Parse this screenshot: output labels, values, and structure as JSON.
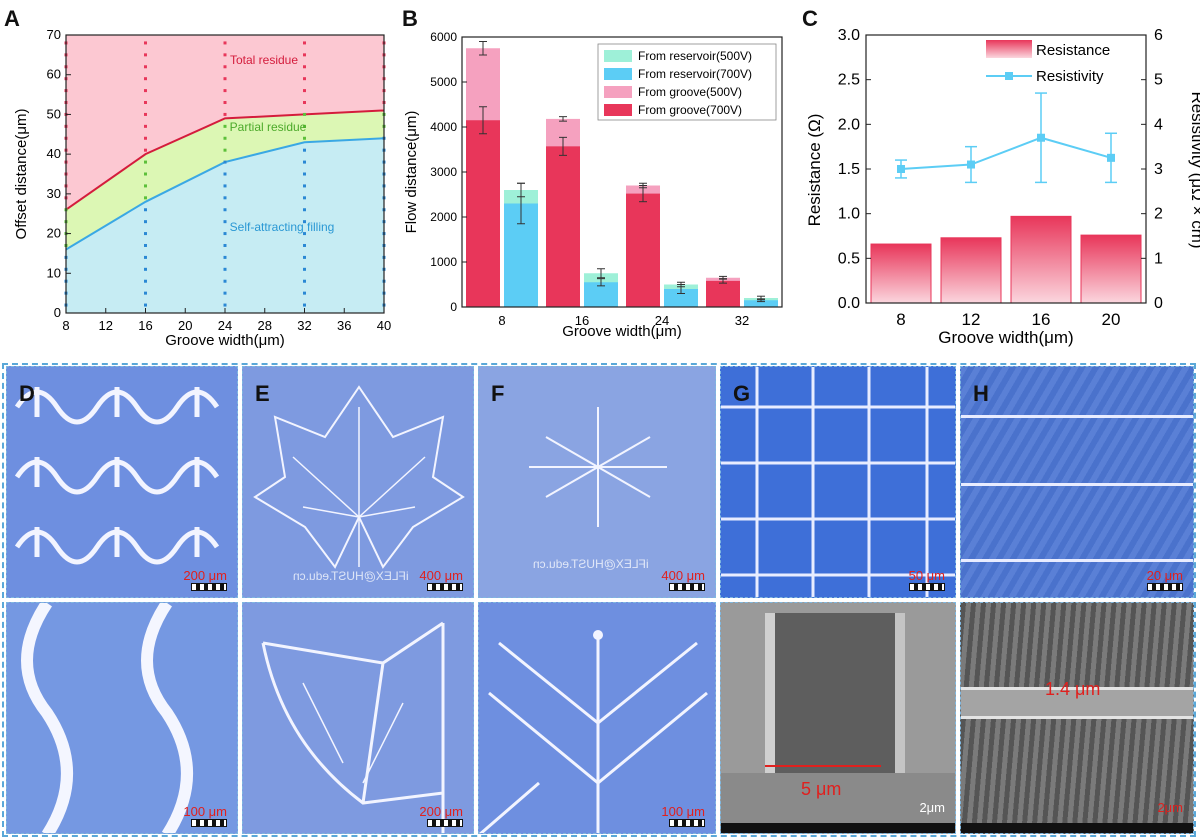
{
  "colors": {
    "red": "#e8365a",
    "pink": "#f5a1bf",
    "cyan": "#5ccdf5",
    "mint": "#9ef0d8",
    "total": "#fcc8d2",
    "partial": "#dcf7b4",
    "self": "#c6ecf3",
    "photo_blue": "#4e79d6"
  },
  "panels": {
    "a": "A",
    "b": "B",
    "c": "C",
    "d": "D",
    "e": "E",
    "f": "F",
    "g": "G",
    "h": "H"
  },
  "chart_data": [
    {
      "type": "area",
      "panel": "A",
      "xlabel": "Groove width(μm)",
      "ylabel": "Offset distance(μm)",
      "xlim": [
        8,
        40
      ],
      "ylim": [
        0,
        70
      ],
      "xticks": [
        8,
        12,
        16,
        20,
        24,
        28,
        32,
        36,
        40
      ],
      "yticks": [
        0,
        10,
        20,
        30,
        40,
        50,
        60,
        70
      ],
      "regions": [
        "Total residue",
        "Partial residue",
        "Self-attracting filling"
      ],
      "upper_boundary": {
        "x": [
          8,
          16,
          24,
          32,
          40
        ],
        "y": [
          26,
          40,
          49,
          50,
          51
        ]
      },
      "lower_boundary": {
        "x": [
          8,
          16,
          24,
          32,
          40
        ],
        "y": [
          16,
          28,
          38,
          43,
          44
        ]
      }
    },
    {
      "type": "bar",
      "panel": "B",
      "xlabel": "Groove width(μm)",
      "ylabel": "Flow distance(μm)",
      "ylim": [
        0,
        6000
      ],
      "yticks": [
        0,
        1000,
        2000,
        3000,
        4000,
        5000,
        6000
      ],
      "categories": [
        "8",
        "16",
        "24",
        "32"
      ],
      "series": [
        {
          "name": "From reservoir(500V)",
          "values": [
            2600,
            750,
            500,
            200
          ]
        },
        {
          "name": "From reservoir(700V)",
          "values": [
            2300,
            550,
            400,
            150
          ]
        },
        {
          "name": "From groove(500V)",
          "values": [
            5750,
            4180,
            2700,
            650
          ]
        },
        {
          "name": "From groove(700V)",
          "values": [
            4150,
            3570,
            2520,
            580
          ]
        }
      ],
      "errors": [
        {
          "series": "From reservoir(500V)",
          "values": [
            150,
            100,
            50,
            40
          ]
        },
        {
          "series": "From reservoir(700V)",
          "values": [
            450,
            80,
            100,
            30
          ]
        },
        {
          "series": "From groove(500V)",
          "values": [
            150,
            50,
            50,
            30
          ]
        },
        {
          "series": "From groove(700V)",
          "values": [
            300,
            200,
            180,
            50
          ]
        }
      ]
    },
    {
      "type": "bar",
      "panel": "C",
      "xlabel": "Groove width(μm)",
      "ylabel": "Resistance (Ω)",
      "y2label": "Resistivity (μΩ × cm)",
      "ylim": [
        0,
        3.0
      ],
      "y2lim": [
        0,
        6
      ],
      "yticks": [
        "0.0",
        "0.5",
        "1.0",
        "1.5",
        "2.0",
        "2.5",
        "3.0"
      ],
      "y2ticks": [
        "0",
        "1",
        "2",
        "3",
        "4",
        "5",
        "6"
      ],
      "categories": [
        "8",
        "12",
        "16",
        "20"
      ],
      "series": [
        {
          "name": "Resistance",
          "type": "bar",
          "values": [
            0.66,
            0.73,
            0.97,
            0.76
          ]
        },
        {
          "name": "Resistivity",
          "type": "line",
          "axis": "right",
          "values": [
            3.0,
            3.1,
            3.7,
            3.25
          ],
          "errors": [
            0.2,
            0.4,
            1.0,
            0.55
          ]
        }
      ]
    }
  ],
  "photos": {
    "d_scale_top": "200 μm",
    "d_scale_bottom": "100 μm",
    "e_scale_top": "400 μm",
    "e_scale_bottom": "200 μm",
    "f_scale_top": "400 μm",
    "f_scale_bottom": "100 μm",
    "g_scale_top": "50 μm",
    "g_scale_bottom": "2μm",
    "g_label": "5 μm",
    "h_scale_top": "20 μm",
    "h_scale_bottom": "2μm",
    "h_label": "1.4 μm",
    "watermark": "iFLEX@HUST.edu.cn"
  }
}
